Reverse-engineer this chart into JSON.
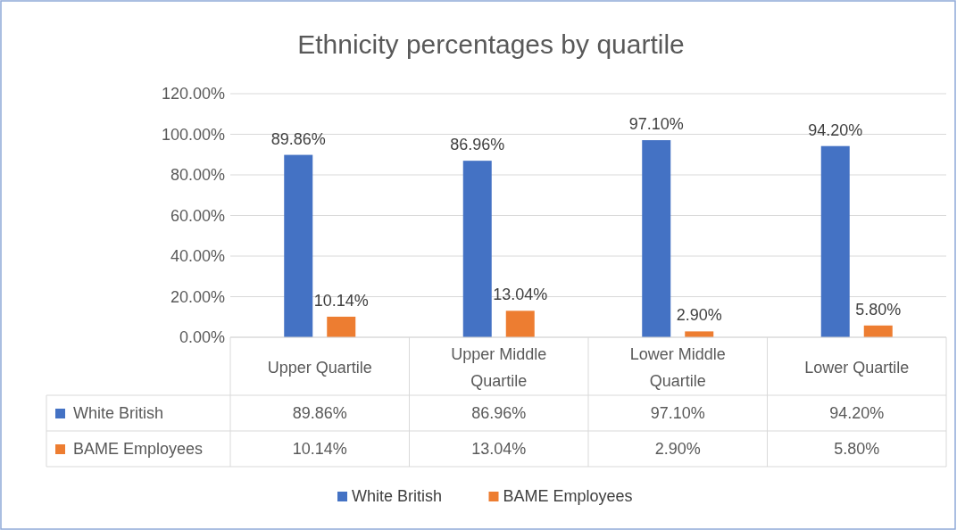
{
  "chart_data": {
    "type": "bar",
    "title": "Ethnicity percentages by quartile",
    "categories": [
      "Upper Quartile",
      "Upper Middle Quartile",
      "Lower Middle Quartile",
      "Lower Quartile"
    ],
    "series": [
      {
        "name": "White British",
        "color": "#4472c4",
        "values": [
          89.86,
          86.96,
          97.1,
          94.2
        ],
        "value_labels": [
          "89.86%",
          "86.96%",
          "97.10%",
          "94.20%"
        ]
      },
      {
        "name": "BAME Employees",
        "color": "#ed7d31",
        "values": [
          10.14,
          13.04,
          2.9,
          5.8
        ],
        "value_labels": [
          "10.14%",
          "13.04%",
          "2.90%",
          "5.80%"
        ]
      }
    ],
    "ylim": [
      0,
      120
    ],
    "yticks": [
      {
        "value": 0,
        "label": "0.00%"
      },
      {
        "value": 20,
        "label": "20.00%"
      },
      {
        "value": 40,
        "label": "40.00%"
      },
      {
        "value": 60,
        "label": "60.00%"
      },
      {
        "value": 80,
        "label": "80.00%"
      },
      {
        "value": 100,
        "label": "100.00%"
      },
      {
        "value": 120,
        "label": "120.00%"
      }
    ],
    "grid": "y",
    "legend": "bottom"
  }
}
